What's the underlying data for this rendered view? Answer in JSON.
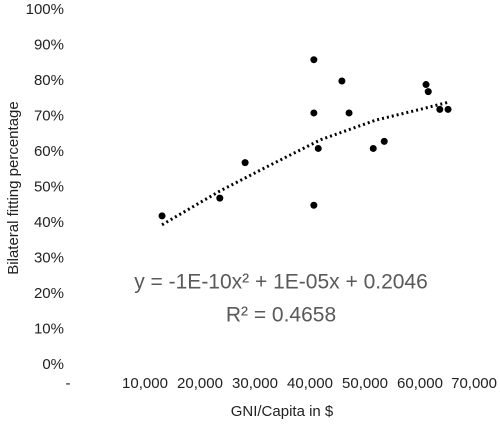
{
  "chart_data": {
    "type": "scatter",
    "xlabel": "GNI/Capita in $",
    "ylabel": "Bilateral fitting percentage",
    "annotations": [
      "y = -1E-10x² + 1E-05x + 0.2046",
      "R² = 0.4658"
    ],
    "x": [
      13100,
      23600,
      28200,
      40700,
      40700,
      40700,
      41500,
      45800,
      47100,
      51500,
      53500,
      61100,
      61500,
      63600,
      65100
    ],
    "values": [
      42,
      47,
      57,
      86,
      71,
      45,
      61,
      80,
      71,
      61,
      63,
      79,
      77,
      72,
      72
    ],
    "color": "#000000",
    "trendline": {
      "x": [
        13100,
        23600,
        33000,
        42000,
        52000,
        60000,
        65100
      ],
      "values": [
        39.5,
        49,
        56.5,
        63.5,
        69,
        72,
        74
      ],
      "color": "#000000"
    },
    "xlim": [
      0,
      70000
    ],
    "xticks": [
      {
        "value": 0,
        "label": "-"
      },
      {
        "value": 10000,
        "label": "10,000"
      },
      {
        "value": 20000,
        "label": "20,000"
      },
      {
        "value": 30000,
        "label": "30,000"
      },
      {
        "value": 40000,
        "label": "40,000"
      },
      {
        "value": 50000,
        "label": "50,000"
      },
      {
        "value": 60000,
        "label": "60,000"
      },
      {
        "value": 70000,
        "label": "70,000"
      }
    ],
    "ylim": [
      0,
      100
    ],
    "yticks": [
      {
        "value": 0,
        "label": "0%"
      },
      {
        "value": 10,
        "label": "10%"
      },
      {
        "value": 20,
        "label": "20%"
      },
      {
        "value": 30,
        "label": "30%"
      },
      {
        "value": 40,
        "label": "40%"
      },
      {
        "value": 50,
        "label": "50%"
      },
      {
        "value": 60,
        "label": "60%"
      },
      {
        "value": 70,
        "label": "70%"
      },
      {
        "value": 80,
        "label": "80%"
      },
      {
        "value": 90,
        "label": "90%"
      },
      {
        "value": 100,
        "label": "100%"
      }
    ],
    "grid": false
  }
}
